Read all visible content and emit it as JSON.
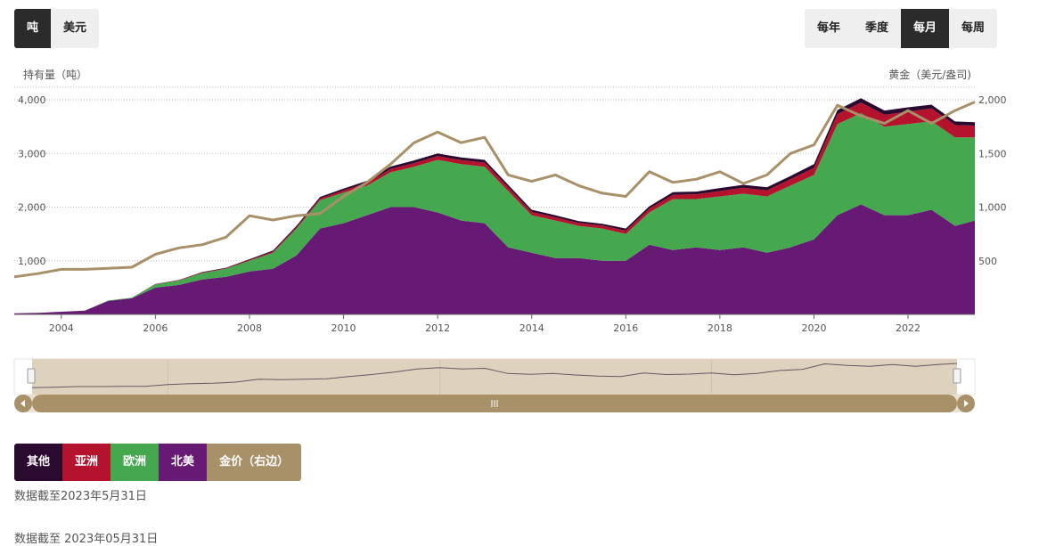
{
  "unit_toggle": [
    "吨",
    "美元"
  ],
  "period_toggle": [
    "每年",
    "季度",
    "每月",
    "每周"
  ],
  "active_unit": "吨",
  "active_period": "每月",
  "legend": [
    {
      "label": "其他",
      "color": "#2a0a2e"
    },
    {
      "label": "亚洲",
      "color": "#b5122e"
    },
    {
      "label": "欧洲",
      "color": "#45a84e"
    },
    {
      "label": "北美",
      "color": "#671a74"
    },
    {
      "label": "金价（右边）",
      "color": "#a89068"
    }
  ],
  "notes": [
    "数据截至2023年5月31日",
    "数据截至 2023年05月31日"
  ],
  "chart_data": {
    "type": "area",
    "ylabel_left": "持有量（吨）",
    "ylabel_right": "黄金（美元/盎司)",
    "left_ticks": [
      "1,000",
      "2,000",
      "3,000",
      "4,000"
    ],
    "right_ticks": [
      "500",
      "1,000",
      "1,500",
      "2,000"
    ],
    "x_ticks": [
      "2004",
      "2006",
      "2008",
      "2010",
      "2012",
      "2014",
      "2016",
      "2018",
      "2020",
      "2022"
    ],
    "ylim_left": [
      0,
      4200
    ],
    "ylim_right": [
      0,
      2100
    ],
    "xlim": [
      2003.0,
      2023.42
    ],
    "x": [
      2003.0,
      2003.5,
      2004.0,
      2004.5,
      2005.0,
      2005.5,
      2006.0,
      2006.5,
      2007.0,
      2007.5,
      2008.0,
      2008.5,
      2009.0,
      2009.5,
      2010.0,
      2010.5,
      2011.0,
      2011.5,
      2012.0,
      2012.5,
      2013.0,
      2013.5,
      2014.0,
      2014.5,
      2015.0,
      2015.5,
      2016.0,
      2016.5,
      2017.0,
      2017.5,
      2018.0,
      2018.5,
      2019.0,
      2019.5,
      2020.0,
      2020.5,
      2021.0,
      2021.5,
      2022.0,
      2022.5,
      2023.0,
      2023.42
    ],
    "series": [
      {
        "name": "北美",
        "values": [
          20,
          30,
          50,
          70,
          250,
          300,
          500,
          550,
          650,
          700,
          800,
          850,
          1100,
          1600,
          1700,
          1850,
          2000,
          2000,
          1900,
          1750,
          1700,
          1250,
          1150,
          1050,
          1050,
          1000,
          1000,
          1300,
          1200,
          1250,
          1200,
          1250,
          1150,
          1250,
          1400,
          1850,
          2050,
          1850,
          1850,
          1950,
          1650,
          1750
        ]
      },
      {
        "name": "欧洲",
        "values": [
          0,
          0,
          0,
          0,
          10,
          10,
          60,
          80,
          120,
          150,
          200,
          300,
          500,
          530,
          570,
          550,
          650,
          750,
          980,
          1050,
          1050,
          1050,
          700,
          700,
          600,
          600,
          500,
          600,
          950,
          900,
          1000,
          1000,
          1050,
          1150,
          1200,
          1700,
          1700,
          1650,
          1700,
          1650,
          1650,
          1550
        ]
      },
      {
        "name": "亚洲",
        "values": [
          0,
          0,
          0,
          0,
          0,
          0,
          5,
          5,
          10,
          10,
          15,
          20,
          25,
          30,
          40,
          50,
          60,
          70,
          70,
          75,
          80,
          70,
          60,
          60,
          55,
          55,
          60,
          70,
          80,
          90,
          100,
          110,
          110,
          120,
          130,
          180,
          200,
          220,
          230,
          240,
          230,
          220
        ]
      },
      {
        "name": "其他",
        "values": [
          0,
          0,
          0,
          0,
          0,
          0,
          5,
          5,
          10,
          10,
          15,
          20,
          25,
          30,
          35,
          40,
          45,
          50,
          50,
          50,
          50,
          45,
          40,
          40,
          35,
          35,
          40,
          45,
          50,
          50,
          55,
          55,
          60,
          60,
          70,
          80,
          80,
          80,
          80,
          70,
          65,
          60
        ]
      },
      {
        "name": "金价（右边）",
        "axis": "right",
        "values": [
          350,
          380,
          420,
          420,
          430,
          440,
          560,
          620,
          650,
          720,
          920,
          880,
          920,
          940,
          1100,
          1230,
          1400,
          1600,
          1700,
          1600,
          1650,
          1300,
          1240,
          1300,
          1200,
          1130,
          1100,
          1330,
          1230,
          1260,
          1330,
          1220,
          1300,
          1500,
          1580,
          1950,
          1850,
          1780,
          1900,
          1780,
          1900,
          1980
        ]
      }
    ]
  }
}
